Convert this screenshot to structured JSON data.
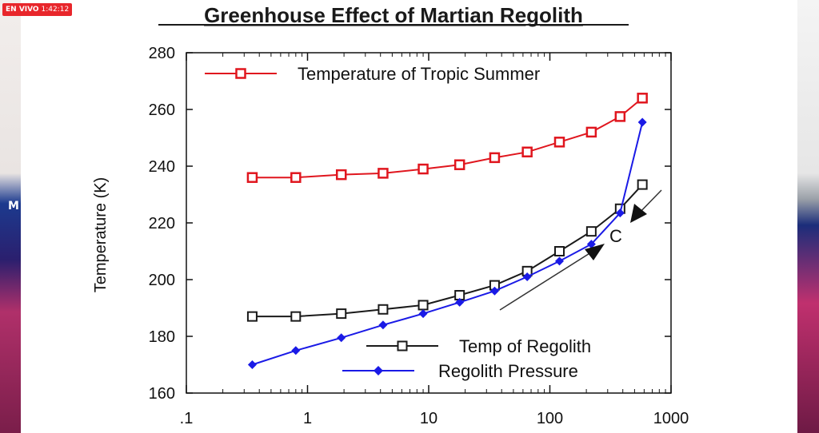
{
  "overlay": {
    "live_label": "EN VIVO",
    "live_time": "1:42:12",
    "side_letter": "M"
  },
  "colors": {
    "red": "#e0161e",
    "black": "#1a1a1a",
    "blue": "#1a1ae6",
    "live_badge": "#e8262b"
  },
  "chart_data": {
    "type": "line",
    "title": "Greenhouse Effect of Martian Regolith",
    "xlabel": "",
    "ylabel": "Temperature (K)",
    "xscale": "log",
    "xlim": [
      0.1,
      1000
    ],
    "ylim": [
      160,
      280
    ],
    "x_ticks": [
      0.1,
      1,
      10,
      100,
      1000
    ],
    "x_tick_labels": [
      ".1",
      "1",
      "10",
      "100",
      "1000"
    ],
    "y_ticks": [
      160,
      180,
      200,
      220,
      240,
      260,
      280
    ],
    "y_tick_labels": [
      "160",
      "180",
      "200",
      "220",
      "240",
      "260",
      "280"
    ],
    "grid": false,
    "legend_position": "inside",
    "annotation": "C",
    "series": [
      {
        "name": "Temperature of Tropic Summer",
        "color": "#e0161e",
        "marker": "square",
        "x": [
          0.35,
          0.8,
          1.9,
          4.2,
          9,
          18,
          35,
          65,
          120,
          220,
          380,
          580
        ],
        "y": [
          236,
          236,
          237,
          237.5,
          239,
          240.5,
          243,
          245,
          248.5,
          252,
          257.5,
          264
        ]
      },
      {
        "name": "Temp of Regolith",
        "color": "#1a1a1a",
        "marker": "hollow-square",
        "x": [
          0.35,
          0.8,
          1.9,
          4.2,
          9,
          18,
          35,
          65,
          120,
          220,
          380,
          580
        ],
        "y": [
          187,
          187,
          188,
          189.5,
          191,
          194.5,
          198,
          203,
          210,
          217,
          225,
          233.5
        ]
      },
      {
        "name": "Regolith Pressure",
        "color": "#1a1ae6",
        "marker": "diamond",
        "x": [
          0.35,
          0.8,
          1.9,
          4.2,
          9,
          18,
          35,
          65,
          120,
          220,
          380,
          580
        ],
        "y": [
          170,
          175,
          179.5,
          184,
          188,
          192,
          196,
          201,
          206.5,
          212.5,
          223.5,
          255.5
        ]
      }
    ]
  }
}
